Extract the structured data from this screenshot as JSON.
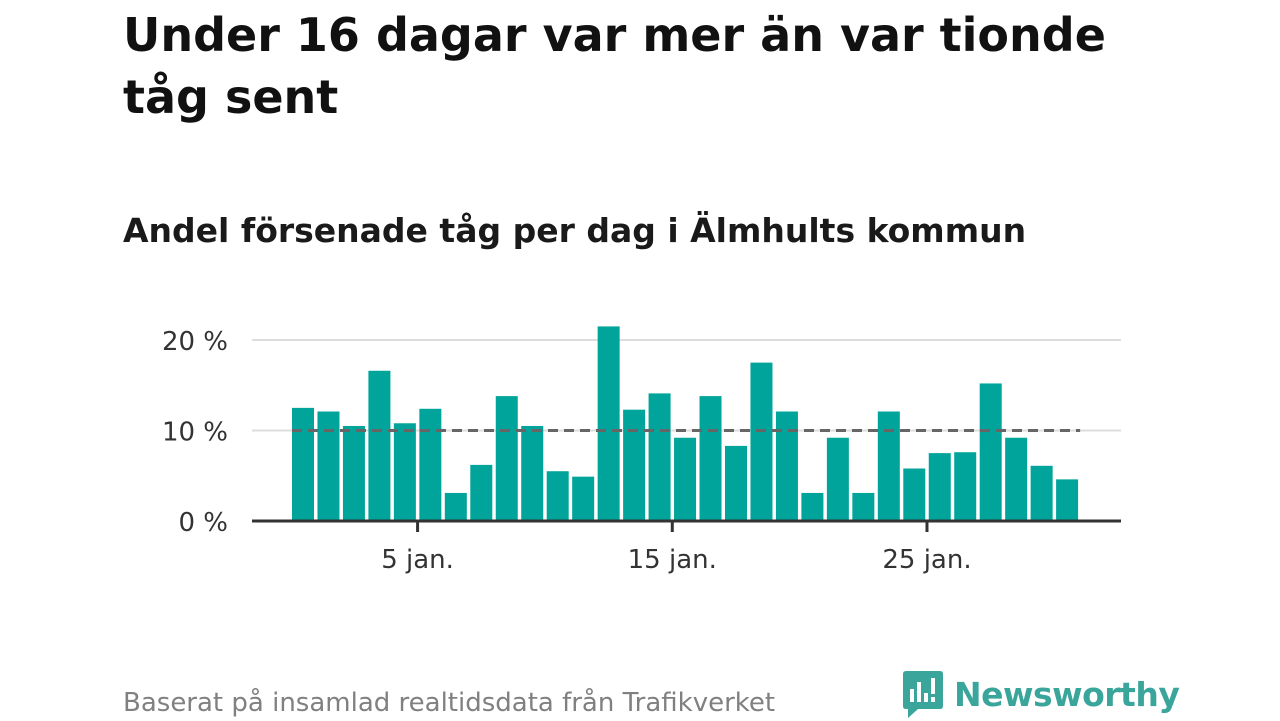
{
  "title": "Under 16 dagar var mer än var tionde tåg sent",
  "subtitle": "Andel försenade tåg per dag i Älmhults kommun",
  "footer": "Baserat på insamlad realtidsdata från Trafikverket",
  "brand": {
    "name": "Newsworthy",
    "icon": "newsworthy-logo-icon",
    "color": "#3aa59b"
  },
  "chart_data": {
    "type": "bar",
    "x": [
      1,
      2,
      3,
      4,
      5,
      6,
      7,
      8,
      9,
      10,
      11,
      12,
      13,
      14,
      15,
      16,
      17,
      18,
      19,
      20,
      21,
      22,
      23,
      24,
      25,
      26,
      27,
      28,
      29,
      30,
      31
    ],
    "values": [
      12.5,
      12.1,
      10.5,
      16.6,
      10.8,
      12.4,
      3.1,
      6.2,
      13.8,
      10.5,
      5.5,
      4.9,
      21.5,
      12.3,
      14.1,
      9.2,
      13.8,
      8.3,
      17.5,
      12.1,
      3.1,
      9.2,
      3.1,
      12.1,
      5.8,
      7.5,
      7.6,
      15.2,
      9.2,
      6.1,
      4.6
    ],
    "reference_value": 10,
    "xticks": [
      5,
      15,
      25
    ],
    "xtick_labels": [
      "5 jan.",
      "15 jan.",
      "25 jan."
    ],
    "yticks": [
      0,
      10,
      20
    ],
    "ytick_labels": [
      "0 %",
      "10 %",
      "20 %"
    ],
    "ylim": [
      0,
      22
    ],
    "grid": true,
    "bar_color": "#00a49a",
    "reference_color": "#666666"
  }
}
